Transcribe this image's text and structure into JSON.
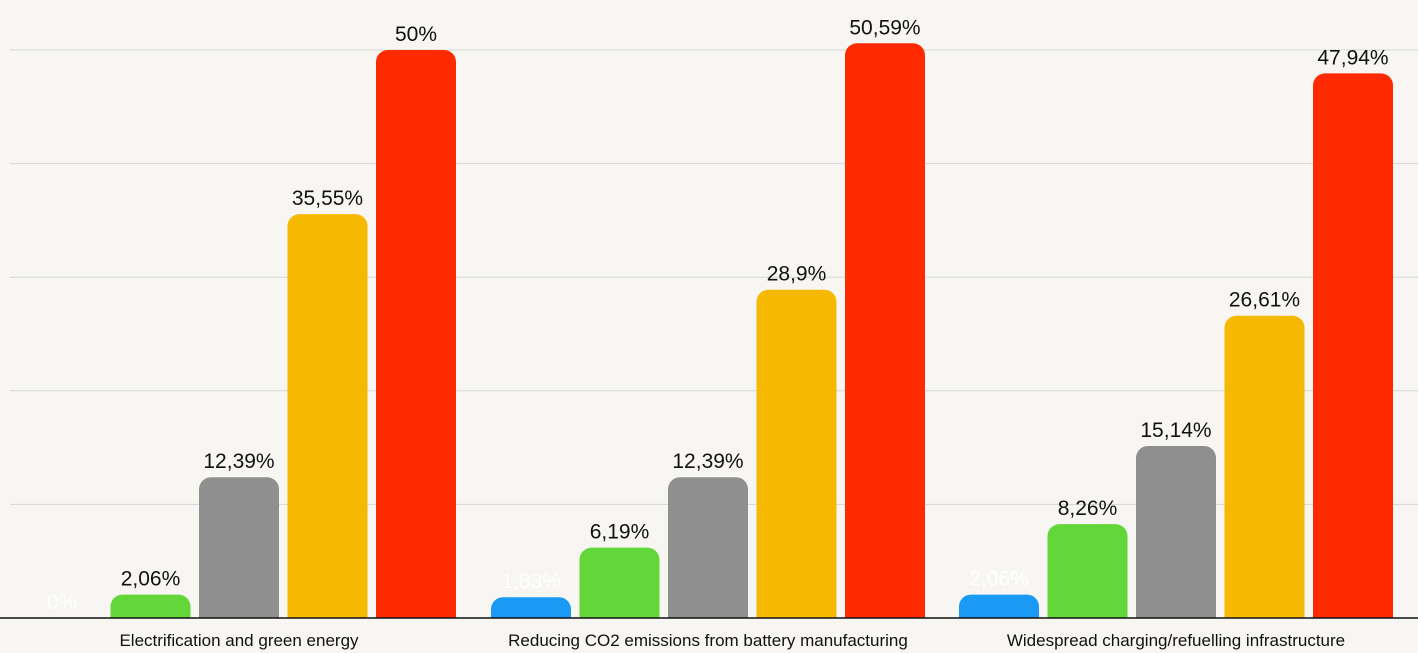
{
  "chart_data": {
    "type": "bar",
    "categories": [
      "Electrification and green energy",
      "Reducing CO2 emissions from battery manufacturing",
      "Widespread charging/refuelling infrastructure"
    ],
    "series": [
      {
        "color": "#1a9af5",
        "values": [
          0,
          1.83,
          2.06
        ],
        "labels": [
          "0%",
          "1,83%",
          "2,06%"
        ]
      },
      {
        "color": "#63d63a",
        "values": [
          2.06,
          6.19,
          8.26
        ],
        "labels": [
          "2,06%",
          "6,19%",
          "8,26%"
        ]
      },
      {
        "color": "#8f8f8f",
        "values": [
          12.39,
          12.39,
          15.14
        ],
        "labels": [
          "12,39%",
          "12,39%",
          "15,14%"
        ]
      },
      {
        "color": "#f6b800",
        "values": [
          35.55,
          28.9,
          26.61
        ],
        "labels": [
          "35,55%",
          "28,9%",
          "26,61%"
        ]
      },
      {
        "color": "#ff2a00",
        "values": [
          50,
          50.59,
          47.94
        ],
        "labels": [
          "50%",
          "50,59%",
          "47,94%"
        ]
      }
    ],
    "ylim": [
      0,
      54
    ],
    "grid": true,
    "legend": "none",
    "title": "",
    "xlabel": "",
    "ylabel": ""
  }
}
